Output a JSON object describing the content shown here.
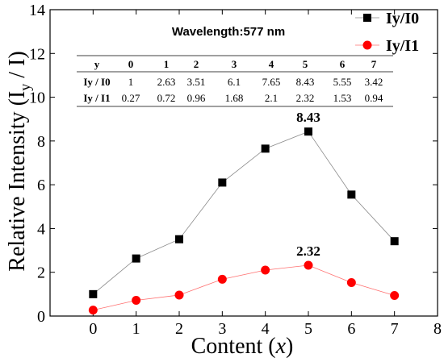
{
  "chart_data": {
    "type": "line",
    "title": "Wavelength:577 nm",
    "xlabel": "Content (x)",
    "ylabel": "Relative Intensity (I_y / I)",
    "xlim": [
      -1,
      8
    ],
    "ylim": [
      0,
      14
    ],
    "x_ticks": [
      0,
      1,
      2,
      3,
      4,
      5,
      6,
      7,
      8
    ],
    "y_ticks": [
      0,
      2,
      4,
      6,
      8,
      10,
      12,
      14
    ],
    "x": [
      0,
      1,
      2,
      3,
      4,
      5,
      6,
      7
    ],
    "series": [
      {
        "name": "Iy/I0",
        "color": "#000000",
        "marker": "square",
        "values": [
          1,
          2.63,
          3.51,
          6.1,
          7.65,
          8.43,
          5.55,
          3.42
        ]
      },
      {
        "name": "Iy/I1",
        "color": "#ff0000",
        "marker": "circle",
        "values": [
          0.27,
          0.72,
          0.96,
          1.68,
          2.1,
          2.32,
          1.53,
          0.94
        ]
      }
    ],
    "annotations": [
      {
        "text": "8.43",
        "x": 5,
        "y": 8.43
      },
      {
        "text": "2.32",
        "x": 5,
        "y": 2.32
      }
    ],
    "legend": {
      "position": "top-right",
      "entries": [
        "Iy/I0",
        "Iy/I1"
      ]
    },
    "inset_table": {
      "header_label": "y",
      "columns": [
        "0",
        "1",
        "2",
        "3",
        "4",
        "5",
        "6",
        "7"
      ],
      "rows": [
        {
          "label": "Iy / I0",
          "values": [
            "1",
            "2.63",
            "3.51",
            "6.1",
            "7.65",
            "8.43",
            "5.55",
            "3.42"
          ]
        },
        {
          "label": "Iy / I1",
          "values": [
            "0.27",
            "0.72",
            "0.96",
            "1.68",
            "2.1",
            "2.32",
            "1.53",
            "0.94"
          ]
        }
      ]
    },
    "grid": false
  }
}
